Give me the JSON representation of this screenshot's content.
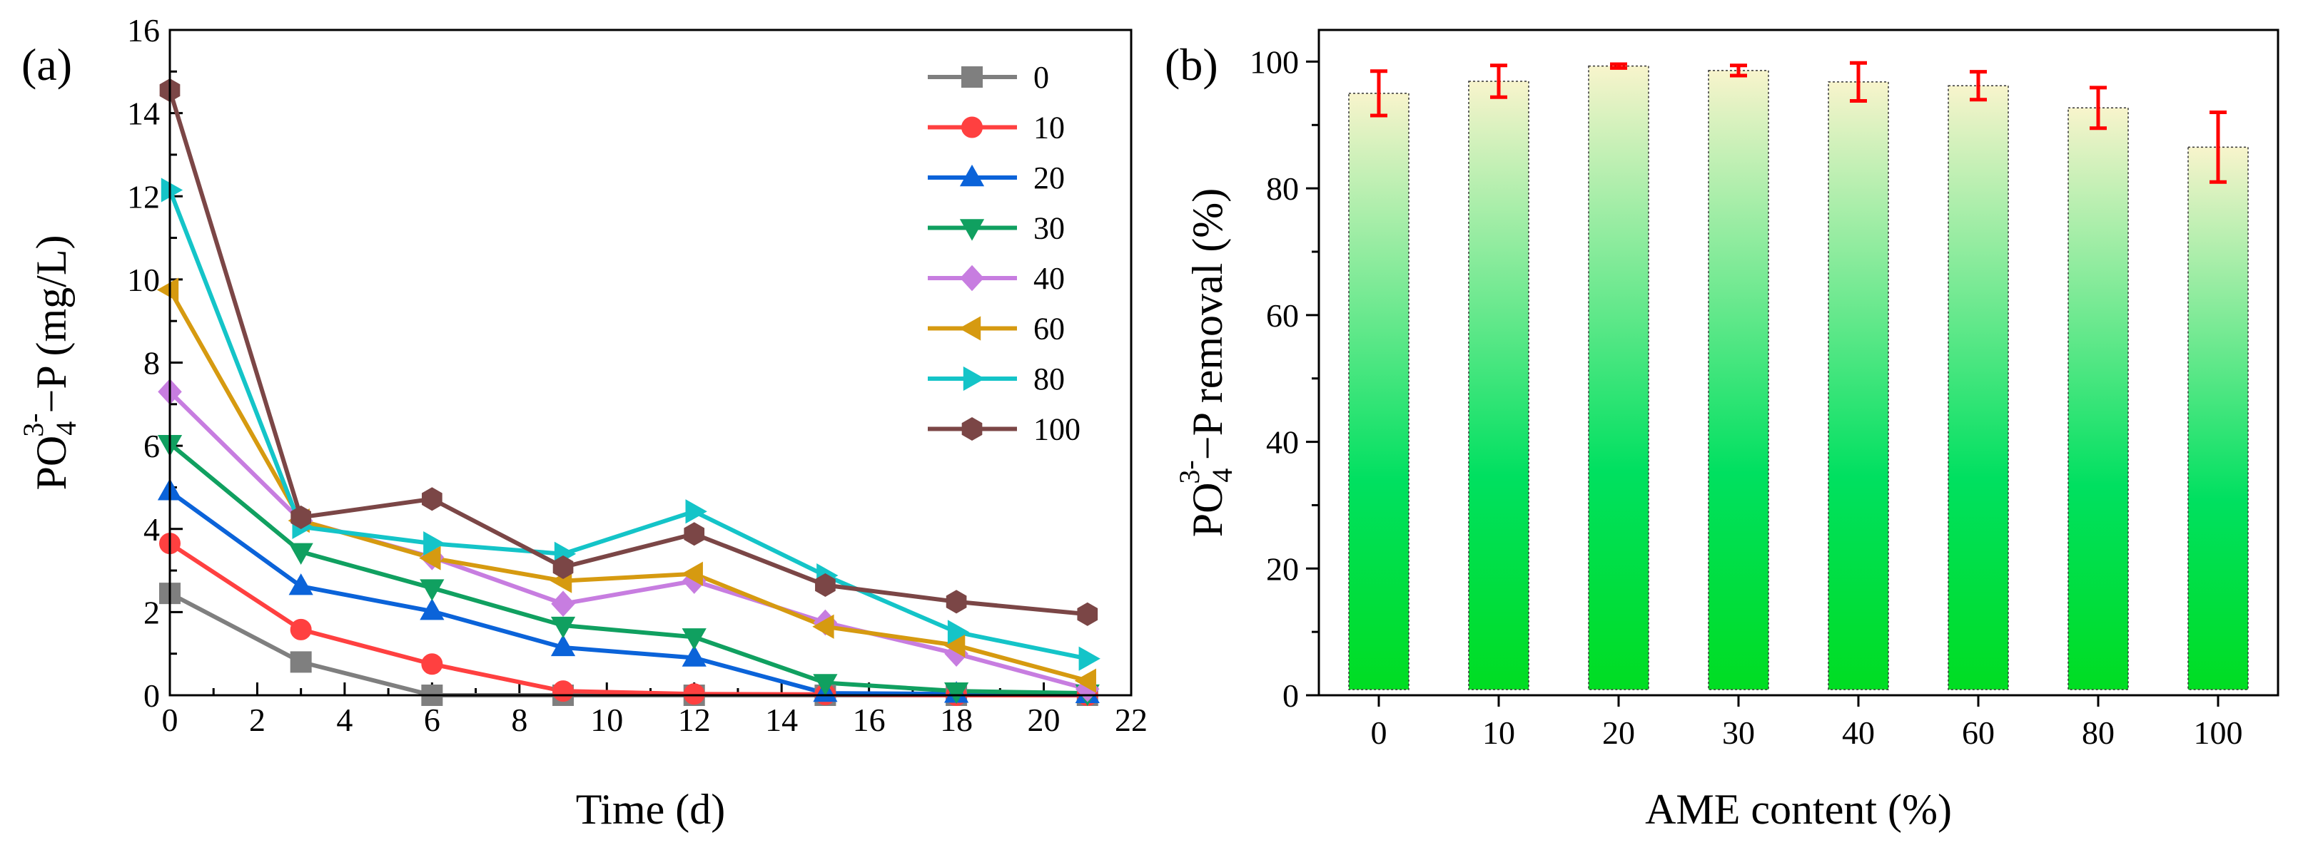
{
  "chart_data": [
    {
      "type": "line",
      "panel_label": "(a)",
      "xlabel": "Time (d)",
      "ylabel": {
        "base": "PO",
        "sub": "4",
        "sup": "3-",
        "rest": "−P (mg/L)"
      },
      "xlim": [
        0,
        22
      ],
      "ylim": [
        0,
        16
      ],
      "xticks": [
        "0",
        "2",
        "4",
        "6",
        "8",
        "10",
        "12",
        "14",
        "16",
        "18",
        "20",
        "22"
      ],
      "yticks": [
        "0",
        "2",
        "4",
        "6",
        "8",
        "10",
        "12",
        "14",
        "16"
      ],
      "x": [
        0,
        3,
        6,
        9,
        12,
        15,
        18,
        21
      ],
      "legend_position": "top-right",
      "series": [
        {
          "name": "0",
          "color": "#7f7f7f",
          "marker": "square",
          "values": [
            2.45,
            0.8,
            0.0,
            0.0,
            0.0,
            0.0,
            0.0,
            0.0
          ]
        },
        {
          "name": "10",
          "color": "#ff4040",
          "marker": "circle",
          "values": [
            3.65,
            1.58,
            0.75,
            0.1,
            0.03,
            0.02,
            0.0,
            0.0
          ]
        },
        {
          "name": "20",
          "color": "#0b63d9",
          "marker": "triangle-up",
          "values": [
            4.9,
            2.62,
            2.02,
            1.15,
            0.9,
            0.05,
            0.03,
            0.02
          ]
        },
        {
          "name": "30",
          "color": "#10a060",
          "marker": "triangle-down",
          "values": [
            6.05,
            3.45,
            2.58,
            1.68,
            1.4,
            0.3,
            0.1,
            0.05
          ]
        },
        {
          "name": "40",
          "color": "#c77de0",
          "marker": "diamond",
          "values": [
            7.3,
            4.2,
            3.32,
            2.2,
            2.75,
            1.75,
            1.0,
            0.15
          ]
        },
        {
          "name": "60",
          "color": "#d69a10",
          "marker": "triangle-left",
          "values": [
            9.75,
            4.2,
            3.3,
            2.75,
            2.92,
            1.65,
            1.2,
            0.35
          ]
        },
        {
          "name": "80",
          "color": "#14c4c8",
          "marker": "triangle-right",
          "values": [
            12.15,
            4.05,
            3.65,
            3.4,
            4.42,
            2.88,
            1.52,
            0.88
          ]
        },
        {
          "name": "100",
          "color": "#7b4646",
          "marker": "hexagon",
          "values": [
            14.55,
            4.28,
            4.72,
            3.08,
            3.88,
            2.65,
            2.25,
            1.95
          ]
        }
      ]
    },
    {
      "type": "bar",
      "panel_label": "(b)",
      "xlabel": "AME content (%)",
      "ylabel": {
        "base": "PO",
        "sub": "4",
        "sup": "3-",
        "rest": "−P removal (%)"
      },
      "ylim": [
        0,
        105
      ],
      "yticks": [
        "0",
        "20",
        "40",
        "60",
        "80",
        "100"
      ],
      "categories": [
        "0",
        "10",
        "20",
        "30",
        "40",
        "60",
        "80",
        "100"
      ],
      "values": [
        95.0,
        96.9,
        99.3,
        98.6,
        96.8,
        96.2,
        92.7,
        86.5
      ],
      "errors": [
        3.5,
        2.5,
        0.3,
        0.8,
        3.0,
        2.2,
        3.2,
        5.5
      ],
      "error_color": "#ff0000",
      "bar_gradient": [
        "#00dd22",
        "#f8f4cc"
      ]
    }
  ]
}
